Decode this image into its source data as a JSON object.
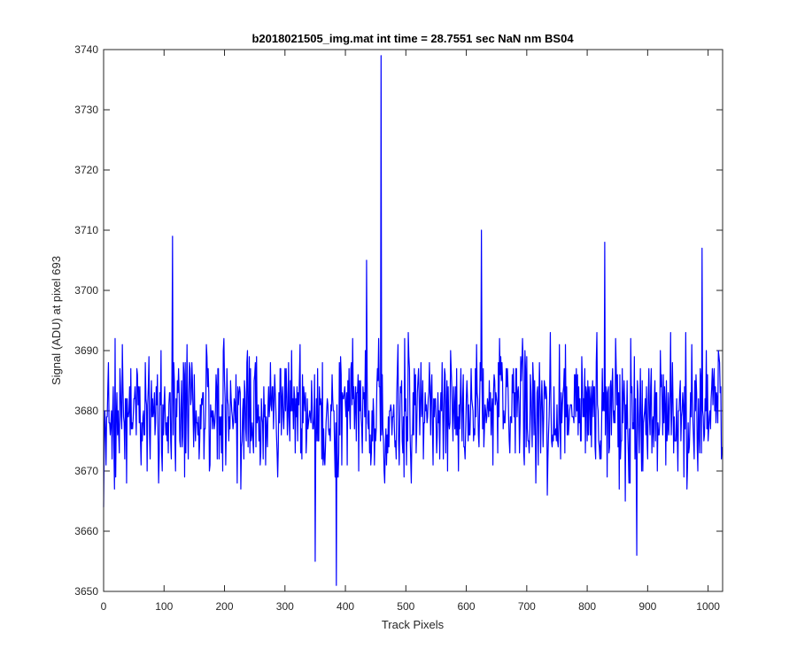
{
  "chart_data": {
    "type": "line",
    "title": "b2018021505_img.mat int time = 28.7551 sec  NaN nm BS04",
    "xlabel": "Track Pixels",
    "ylabel": "Signal (ADU) at pixel 693",
    "xlim": [
      0,
      1024
    ],
    "ylim": [
      3650,
      3740
    ],
    "xticks": [
      0,
      100,
      200,
      300,
      400,
      500,
      600,
      700,
      800,
      900,
      1000
    ],
    "yticks": [
      3650,
      3660,
      3670,
      3680,
      3690,
      3700,
      3710,
      3720,
      3730,
      3740
    ],
    "grid": false,
    "box": true,
    "line_color": "#0000ff",
    "n_points": 1024,
    "notable_points": [
      {
        "x": 0,
        "y": 3664
      },
      {
        "x": 114,
        "y": 3709
      },
      {
        "x": 350,
        "y": 3655
      },
      {
        "x": 385,
        "y": 3651
      },
      {
        "x": 435,
        "y": 3705
      },
      {
        "x": 459,
        "y": 3739
      },
      {
        "x": 625,
        "y": 3710
      },
      {
        "x": 829,
        "y": 3708
      },
      {
        "x": 882,
        "y": 3656
      },
      {
        "x": 990,
        "y": 3707
      }
    ],
    "baseline_mean": 3680,
    "noise_range": [
      3660,
      3697
    ]
  }
}
